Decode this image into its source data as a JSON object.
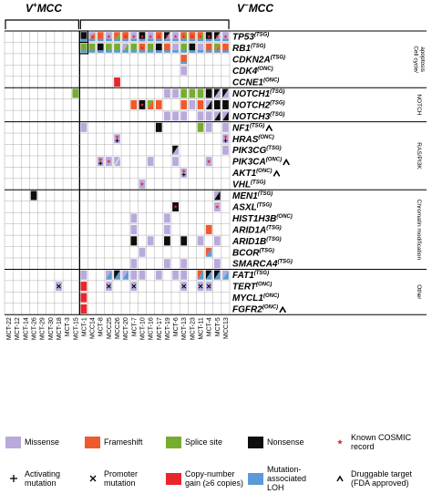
{
  "chart_data": {
    "type": "heatmap",
    "header_left": {
      "main": "V",
      "sup": "+",
      "tail": "MCC"
    },
    "header_right": {
      "main": "V",
      "sup": "−",
      "tail": "MCC"
    },
    "samples": [
      "MCT-22",
      "MCT-12",
      "MCT-14",
      "MCT-26",
      "MCT-29",
      "MCT-30",
      "MCT-18",
      "MCT-3",
      "MCT-15",
      "MCT-1",
      "MCC14",
      "MCT-8",
      "MCC25",
      "MCC26",
      "MCT-20",
      "MCT-7",
      "MCT-10",
      "MCT-16",
      "MCT-17",
      "MCT-19",
      "MCT-6",
      "MCT-13",
      "MCT-23",
      "MCT-11",
      "MCT-4",
      "MCT-5",
      "MCC13"
    ],
    "virus_positive_count": 9,
    "genes": [
      {
        "name": "TP53",
        "tag": "(TSG)",
        "drug": false
      },
      {
        "name": "RB1",
        "tag": "(TSG)",
        "drug": false
      },
      {
        "name": "CDKN2A",
        "tag": "(TSG)",
        "drug": false
      },
      {
        "name": "CDK4",
        "tag": "(ONC)",
        "drug": false
      },
      {
        "name": "CCNE1",
        "tag": "(ONC)",
        "drug": false
      },
      {
        "name": "NOTCH1",
        "tag": "(TSG)",
        "drug": false
      },
      {
        "name": "NOTCH2",
        "tag": "(TSG)",
        "drug": false
      },
      {
        "name": "NOTCH3",
        "tag": "(TSG)",
        "drug": false
      },
      {
        "name": "NF1",
        "tag": "(TSG)",
        "drug": true
      },
      {
        "name": "HRAS",
        "tag": "(ONC)",
        "drug": false
      },
      {
        "name": "PIK3CG",
        "tag": "(TSG)",
        "drug": false
      },
      {
        "name": "PIK3CA",
        "tag": "(ONC)",
        "drug": true
      },
      {
        "name": "AKT1",
        "tag": "(ONC)",
        "drug": true
      },
      {
        "name": "VHL",
        "tag": "(TSG)",
        "drug": false
      },
      {
        "name": "MEN1",
        "tag": "(TSG)",
        "drug": false
      },
      {
        "name": "ASXL",
        "tag": "(TSG)",
        "drug": false
      },
      {
        "name": "HIST1H3B",
        "tag": "(ONC)",
        "drug": false
      },
      {
        "name": "ARID1A",
        "tag": "(TSG)",
        "drug": false
      },
      {
        "name": "ARID1B",
        "tag": "(TSG)",
        "drug": false
      },
      {
        "name": "BCOR",
        "tag": "(TSG)",
        "drug": false
      },
      {
        "name": "SMARCA4",
        "tag": "(TSG)",
        "drug": false
      },
      {
        "name": "FAT1",
        "tag": "(TSG)",
        "drug": false
      },
      {
        "name": "TERT",
        "tag": "(ONC)",
        "drug": false
      },
      {
        "name": "MYCL1",
        "tag": "(ONC)",
        "drug": false
      },
      {
        "name": "FGFR2",
        "tag": "(ONC)",
        "drug": true
      }
    ],
    "groups": [
      {
        "label": "Cell cycle/ apoptosis",
        "start": 0,
        "end": 4
      },
      {
        "label": "NOTCH",
        "start": 5,
        "end": 7
      },
      {
        "label": "RAS/PI3K",
        "start": 8,
        "end": 13
      },
      {
        "label": "Chromatin modification",
        "start": 14,
        "end": 20
      },
      {
        "label": "Other",
        "start": 21,
        "end": 24
      }
    ],
    "colors": {
      "M": "#b9a9dc",
      "F": "#f0592b",
      "S": "#77ad2f",
      "N": "#0d0d0d",
      "C": "#e8262b",
      "L": "#5b9bd5",
      "star": "#e8262b",
      "grid": "#8a8a8a"
    },
    "legend": [
      {
        "symbol": "M",
        "label": "Missense"
      },
      {
        "symbol": "F",
        "label": "Frameshift"
      },
      {
        "symbol": "S",
        "label": "Splice site"
      },
      {
        "symbol": "N",
        "label": "Nonsense"
      },
      {
        "symbol": "star",
        "label": "Known COSMIC record"
      },
      {
        "symbol": "plus",
        "label": "Activating mutation"
      },
      {
        "symbol": "x",
        "label": "Promoter mutation"
      },
      {
        "symbol": "C",
        "label": "Copy-number gain (≥6 copies)"
      },
      {
        "symbol": "L",
        "label": "Mutation-associated LOH"
      },
      {
        "symbol": "caret",
        "label": "Druggable target (FDA approved)"
      }
    ],
    "cells": [
      {
        "g": 0,
        "s": 9,
        "v": "N",
        "lw": true,
        "k": true
      },
      {
        "g": 0,
        "s": 10,
        "v": "M/F",
        "st": true,
        "lw": true
      },
      {
        "g": 0,
        "s": 11,
        "v": "F",
        "lw": true
      },
      {
        "g": 0,
        "s": 12,
        "v": "M",
        "st": true,
        "lw": true
      },
      {
        "g": 0,
        "s": 13,
        "v": "F/S",
        "lw": true
      },
      {
        "g": 0,
        "s": 14,
        "v": "F",
        "st": true,
        "lw": true
      },
      {
        "g": 0,
        "s": 15,
        "v": "M",
        "st": true,
        "lw": true
      },
      {
        "g": 0,
        "s": 16,
        "v": "N",
        "st": true,
        "lw": true
      },
      {
        "g": 0,
        "s": 17,
        "v": "M",
        "st": true,
        "lw": true
      },
      {
        "g": 0,
        "s": 18,
        "v": "F",
        "st": true,
        "lw": true
      },
      {
        "g": 0,
        "s": 19,
        "v": "N/M",
        "st": true,
        "lw": true
      },
      {
        "g": 0,
        "s": 20,
        "v": "M",
        "st": true,
        "lw": true
      },
      {
        "g": 0,
        "s": 21,
        "v": "F/S",
        "st": true,
        "lw": true
      },
      {
        "g": 0,
        "s": 22,
        "v": "F",
        "st": true,
        "lw": true
      },
      {
        "g": 0,
        "s": 23,
        "v": "F/S",
        "st": true,
        "lw": true
      },
      {
        "g": 0,
        "s": 24,
        "v": "N",
        "st": true,
        "lw": true
      },
      {
        "g": 0,
        "s": 25,
        "v": "N/M",
        "st": true,
        "lw": true
      },
      {
        "g": 0,
        "s": 26,
        "v": "M",
        "st": true,
        "lw": true
      },
      {
        "g": 1,
        "s": 9,
        "v": "S",
        "lw": true,
        "k": true
      },
      {
        "g": 1,
        "s": 10,
        "v": "S",
        "lw": true
      },
      {
        "g": 1,
        "s": 11,
        "v": "N",
        "lw": true
      },
      {
        "g": 1,
        "s": 12,
        "v": "S",
        "lw": true
      },
      {
        "g": 1,
        "s": 13,
        "v": "S",
        "lw": true
      },
      {
        "g": 1,
        "s": 14,
        "v": "M/S",
        "lw": true
      },
      {
        "g": 1,
        "s": 15,
        "v": "S",
        "lw": true
      },
      {
        "g": 1,
        "s": 16,
        "v": "F",
        "st": true,
        "lw": true
      },
      {
        "g": 1,
        "s": 17,
        "v": "S",
        "lw": true
      },
      {
        "g": 1,
        "s": 18,
        "v": "N",
        "lw": true
      },
      {
        "g": 1,
        "s": 19,
        "v": "F",
        "lw": true
      },
      {
        "g": 1,
        "s": 20,
        "v": "M",
        "lw": true
      },
      {
        "g": 1,
        "s": 21,
        "v": "S",
        "lw": true
      },
      {
        "g": 1,
        "s": 22,
        "v": "N",
        "lw": true
      },
      {
        "g": 1,
        "s": 23,
        "v": "M",
        "lw": true
      },
      {
        "g": 1,
        "s": 24,
        "v": "F",
        "lw": true
      },
      {
        "g": 1,
        "s": 25,
        "v": "S/F",
        "lw": true
      },
      {
        "g": 1,
        "s": 26,
        "v": "F",
        "lw": true
      },
      {
        "g": 2,
        "s": 21,
        "v": "F",
        "lw": true
      },
      {
        "g": 3,
        "s": 21,
        "v": "M"
      },
      {
        "g": 4,
        "s": 13,
        "v": "C"
      },
      {
        "g": 5,
        "s": 8,
        "v": "S"
      },
      {
        "g": 5,
        "s": 19,
        "v": "M"
      },
      {
        "g": 5,
        "s": 20,
        "v": "M"
      },
      {
        "g": 5,
        "s": 21,
        "v": "S"
      },
      {
        "g": 5,
        "s": 22,
        "v": "S"
      },
      {
        "g": 5,
        "s": 23,
        "v": "S"
      },
      {
        "g": 5,
        "s": 24,
        "v": "N"
      },
      {
        "g": 5,
        "s": 25,
        "v": "N/M"
      },
      {
        "g": 5,
        "s": 26,
        "v": "N/M"
      },
      {
        "g": 6,
        "s": 15,
        "v": "F"
      },
      {
        "g": 6,
        "s": 16,
        "v": "N",
        "st": true
      },
      {
        "g": 6,
        "s": 17,
        "v": "S/F"
      },
      {
        "g": 6,
        "s": 18,
        "v": "F"
      },
      {
        "g": 6,
        "s": 21,
        "v": "F"
      },
      {
        "g": 6,
        "s": 22,
        "v": "M"
      },
      {
        "g": 6,
        "s": 23,
        "v": "F"
      },
      {
        "g": 6,
        "s": 24,
        "v": "M/N"
      },
      {
        "g": 6,
        "s": 25,
        "v": "N"
      },
      {
        "g": 6,
        "s": 26,
        "v": "N"
      },
      {
        "g": 7,
        "s": 19,
        "v": "M"
      },
      {
        "g": 7,
        "s": 20,
        "v": "M"
      },
      {
        "g": 7,
        "s": 21,
        "v": "M"
      },
      {
        "g": 7,
        "s": 23,
        "v": "M"
      },
      {
        "g": 7,
        "s": 24,
        "v": "M"
      },
      {
        "g": 7,
        "s": 25,
        "v": "M/N"
      },
      {
        "g": 7,
        "s": 26,
        "v": "M/N"
      },
      {
        "g": 8,
        "s": 9,
        "v": "M"
      },
      {
        "g": 8,
        "s": 18,
        "v": "N"
      },
      {
        "g": 8,
        "s": 23,
        "v": "S"
      },
      {
        "g": 8,
        "s": 24,
        "v": "M"
      },
      {
        "g": 8,
        "s": 26,
        "v": "M"
      },
      {
        "g": 9,
        "s": 13,
        "v": "M",
        "st": true,
        "pl": true
      },
      {
        "g": 9,
        "s": 26,
        "v": "M",
        "st": true,
        "pl": true
      },
      {
        "g": 10,
        "s": 20,
        "v": "N/M"
      },
      {
        "g": 10,
        "s": 26,
        "v": "M"
      },
      {
        "g": 11,
        "s": 11,
        "v": "M",
        "st": true,
        "pl": true
      },
      {
        "g": 11,
        "s": 12,
        "v": "M",
        "st": true
      },
      {
        "g": 11,
        "s": 13,
        "v": "M/M"
      },
      {
        "g": 11,
        "s": 17,
        "v": "M"
      },
      {
        "g": 11,
        "s": 20,
        "v": "M"
      },
      {
        "g": 11,
        "s": 24,
        "v": "M",
        "st": true
      },
      {
        "g": 12,
        "s": 21,
        "v": "M",
        "st": true,
        "pl": true
      },
      {
        "g": 13,
        "s": 16,
        "v": "M",
        "st": true
      },
      {
        "g": 14,
        "s": 3,
        "v": "N"
      },
      {
        "g": 14,
        "s": 25,
        "v": "M/N"
      },
      {
        "g": 15,
        "s": 20,
        "v": "N",
        "st": true
      },
      {
        "g": 15,
        "s": 25,
        "v": "M",
        "st": true
      },
      {
        "g": 16,
        "s": 15,
        "v": "M"
      },
      {
        "g": 16,
        "s": 19,
        "v": "M"
      },
      {
        "g": 17,
        "s": 15,
        "v": "M"
      },
      {
        "g": 17,
        "s": 19,
        "v": "M"
      },
      {
        "g": 17,
        "s": 24,
        "v": "F"
      },
      {
        "g": 18,
        "s": 15,
        "v": "N"
      },
      {
        "g": 18,
        "s": 17,
        "v": "M"
      },
      {
        "g": 18,
        "s": 19,
        "v": "N"
      },
      {
        "g": 18,
        "s": 21,
        "v": "N"
      },
      {
        "g": 18,
        "s": 23,
        "v": "M"
      },
      {
        "g": 18,
        "s": 25,
        "v": "M"
      },
      {
        "g": 19,
        "s": 16,
        "v": "M"
      },
      {
        "g": 19,
        "s": 24,
        "v": "F/L"
      },
      {
        "g": 20,
        "s": 15,
        "v": "M"
      },
      {
        "g": 20,
        "s": 19,
        "v": "M"
      },
      {
        "g": 20,
        "s": 21,
        "v": "M"
      },
      {
        "g": 20,
        "s": 25,
        "v": "M"
      },
      {
        "g": 21,
        "s": 9,
        "v": "M"
      },
      {
        "g": 21,
        "s": 12,
        "v": "M/L"
      },
      {
        "g": 21,
        "s": 13,
        "v": "N/L"
      },
      {
        "g": 21,
        "s": 14,
        "v": "M/L"
      },
      {
        "g": 21,
        "s": 15,
        "v": "M"
      },
      {
        "g": 21,
        "s": 16,
        "v": "M"
      },
      {
        "g": 21,
        "s": 18,
        "v": "M"
      },
      {
        "g": 21,
        "s": 20,
        "v": "M"
      },
      {
        "g": 21,
        "s": 21,
        "v": "M"
      },
      {
        "g": 21,
        "s": 23,
        "v": "F/L"
      },
      {
        "g": 21,
        "s": 24,
        "v": "N/L"
      },
      {
        "g": 21,
        "s": 25,
        "v": "N/L"
      },
      {
        "g": 21,
        "s": 26,
        "v": "M/L"
      },
      {
        "g": 22,
        "s": 6,
        "v": "M",
        "x": true
      },
      {
        "g": 22,
        "s": 9,
        "v": "C"
      },
      {
        "g": 22,
        "s": 12,
        "v": "M",
        "x": true
      },
      {
        "g": 22,
        "s": 15,
        "v": "M",
        "x": true
      },
      {
        "g": 22,
        "s": 21,
        "v": "M",
        "x": true
      },
      {
        "g": 22,
        "s": 23,
        "v": "M",
        "x": true
      },
      {
        "g": 22,
        "s": 24,
        "v": "M",
        "x": true
      },
      {
        "g": 23,
        "s": 9,
        "v": "C"
      },
      {
        "g": 24,
        "s": 9,
        "v": "C"
      }
    ]
  }
}
